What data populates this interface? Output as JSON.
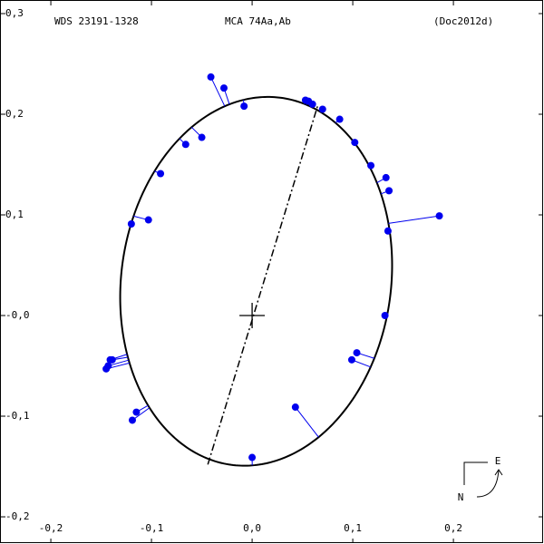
{
  "chart_data": {
    "type": "orbit",
    "title": "WDS 23191-1328",
    "subtitle": "MCA  74Aa,Ab",
    "annotation": "(Doc2012d)",
    "compass": [
      "E",
      "N"
    ],
    "xlim": [
      -0.2505,
      0.29
    ],
    "ylim": [
      -0.227,
      0.3135
    ],
    "xticks": [
      {
        "value": -0.2,
        "label": "-0,2"
      },
      {
        "value": -0.1,
        "label": "-0,1"
      },
      {
        "value": 0,
        "label": "0,0"
      },
      {
        "value": 0.1,
        "label": "0,1"
      },
      {
        "value": 0.2,
        "label": "0,2"
      }
    ],
    "yticks": [
      {
        "value": -0.2,
        "label": "-0,2"
      },
      {
        "value": -0.1,
        "label": "-0,1"
      },
      {
        "value": 0,
        "label": "-0,0"
      },
      {
        "value": 0.1,
        "label": "0,1"
      },
      {
        "value": 0.2,
        "label": "0,2"
      },
      {
        "value": 0.3,
        "label": "0,3"
      }
    ],
    "orbit": {
      "center": [
        0.004,
        0.034
      ],
      "semi_axes": [
        0.134,
        0.184
      ],
      "rotation": 7.8,
      "color": "#000000"
    },
    "line_of_nodes": {
      "x": [
        -0.044,
        0.065
      ],
      "y": [
        -0.148,
        0.208
      ]
    },
    "series": [
      {
        "color": "#0000ee",
        "x": [
          -0.041,
          -0.028,
          -0.008,
          0.053,
          0.056,
          0.06,
          0.07,
          0.087,
          0.102,
          0.118,
          0.133,
          0.136,
          0.186,
          0.135,
          0.132,
          0.104,
          0.099,
          0.043,
          0.0,
          -0.115,
          -0.119,
          -0.141,
          -0.139,
          -0.143,
          -0.145,
          -0.12,
          -0.103,
          -0.091,
          -0.066,
          -0.05
        ],
        "values": [
          0.237,
          0.226,
          0.208,
          0.214,
          0.213,
          0.21,
          0.205,
          0.195,
          0.172,
          0.149,
          0.137,
          0.124,
          0.099,
          0.084,
          0.0,
          -0.037,
          -0.044,
          -0.091,
          -0.141,
          -0.096,
          -0.104,
          -0.044,
          -0.044,
          -0.05,
          -0.053,
          0.091,
          0.095,
          0.141,
          0.17,
          0.177
        ]
      }
    ]
  }
}
